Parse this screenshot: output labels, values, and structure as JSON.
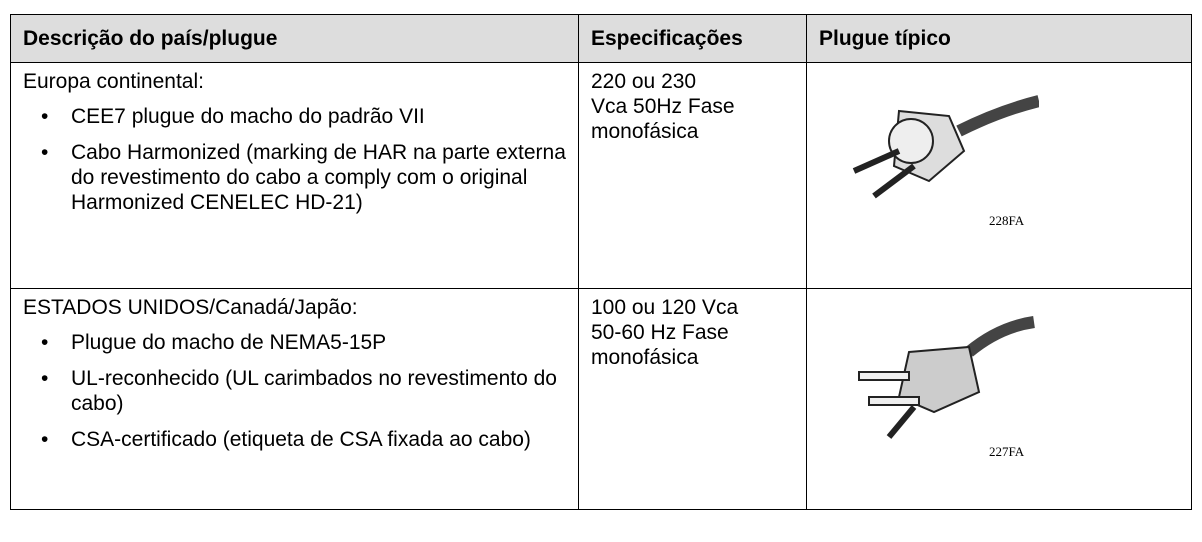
{
  "table": {
    "header": [
      "Descrição do país/plugue",
      "Especificações",
      "Plugue típico"
    ],
    "rows": [
      {
        "region": "Europa continental:",
        "items": [
          "CEE7 plugue do macho do padrão VII",
          "Cabo Harmonized (marking de HAR na parte externa do revestimento do cabo a comply com o original Harmonized CENELEC HD-21)"
        ],
        "specs": [
          "220 ou 230",
          "Vca 50Hz Fase",
          "monofásica"
        ],
        "figure": "228FA"
      },
      {
        "region": "ESTADOS UNIDOS/Canadá/Japão:",
        "items": [
          "Plugue do macho de NEMA5-15P",
          "UL-reconhecido (UL carimbados no revestimento do cabo)",
          "CSA-certificado (etiqueta de CSA fixada ao cabo)"
        ],
        "specs": [
          "100 ou 120 Vca",
          "50-60 Hz Fase",
          "monofásica"
        ],
        "figure": "227FA"
      }
    ]
  }
}
